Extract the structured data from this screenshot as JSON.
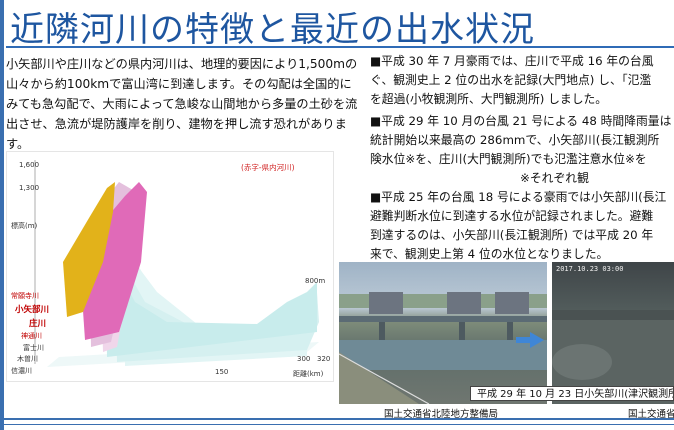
{
  "title": "近隣河川の特徴と最近の出水状況",
  "intro_text": "小矢部川や庄川などの県内河川は、地理的要因により1,500mの山々から約100kmで富山湾に到達します。その勾配は全国的にみても急勾配で、大雨によって急峻な山間地から多量の土砂を流出させ、急流が堤防護岸を削り、建物を押し流す恐れがあります。",
  "right": {
    "p1": "■平成 30 年 7 月豪雨では、庄川で平成 16 年の台風",
    "p1_l2": "ぐ、観測史上 2 位の出水を記録(大門地点) し、「氾濫",
    "p1_l3": "を超過(小牧観測所、大門観測所) しました。",
    "p2": "■平成 29 年 10 月の台風 21 号による 48 時間降雨量は",
    "p2_l2": "統計開始以来最高の 286mmで、小矢部川(長江観測所",
    "p2_l3": "険水位※を、庄川(大門観測所)でも氾濫注意水位※を",
    "p2_note": "※それぞれ観",
    "p3": "■平成 25 年の台風 18 号による豪雨では小矢部川(長江",
    "p3_l2": "避難判断水位に到達する水位が記録されました。避難",
    "p3_l3": "到達するのは、小矢部川(長江観測所) では平成 20 年",
    "p3_l4": "来で、観測史上第 4 位の水位となりました。"
  },
  "chart_data": {
    "type": "area",
    "note": "(赤字-県内河川)",
    "ylabel": "標高(m)",
    "xlabel": "距離(km)",
    "y_ticks": [
      "1,600",
      "1,300"
    ],
    "x_ticks": [
      "150",
      "300",
      "320",
      "800m"
    ],
    "series": [
      {
        "name": "常願寺川",
        "color": "#e2b21a",
        "highlight": true
      },
      {
        "name": "小矢部川",
        "color": "#e06ab8",
        "highlight": true
      },
      {
        "name": "庄川",
        "color": "#e4c0dd",
        "highlight": true
      },
      {
        "name": "神通川",
        "color": "#f0d6ea",
        "highlight": true
      },
      {
        "name": "富士川",
        "color": "#c8ecec",
        "highlight": false
      },
      {
        "name": "木曽川",
        "color": "#d5f0f0",
        "highlight": false
      },
      {
        "name": "信濃川",
        "color": "#e2f5f5",
        "highlight": false
      }
    ]
  },
  "photo": {
    "caption": "平成 29 年 10 月 23 日小矢部川(津沢観測所)",
    "stamp": "2017.10.23 03:00",
    "credit_left": "国土交通省北陸地方整備局",
    "credit_right": "国土交通省"
  }
}
